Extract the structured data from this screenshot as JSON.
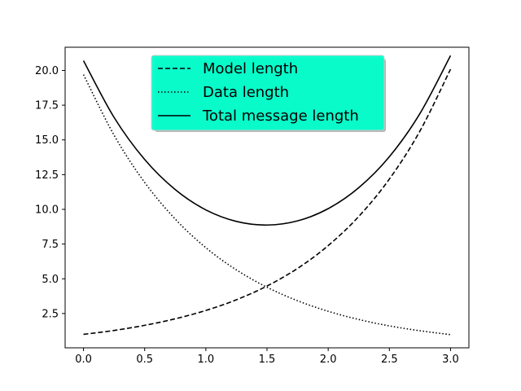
{
  "chart_data": {
    "type": "line",
    "title": "",
    "xlabel": "",
    "ylabel": "",
    "xlim": [
      -0.15,
      3.15
    ],
    "ylim": [
      0.03,
      21.67
    ],
    "x_ticks": [
      0.0,
      0.5,
      1.0,
      1.5,
      2.0,
      2.5,
      3.0
    ],
    "x_tick_labels": [
      "0.0",
      "0.5",
      "1.0",
      "1.5",
      "2.0",
      "2.5",
      "3.0"
    ],
    "y_ticks": [
      2.5,
      5.0,
      7.5,
      10.0,
      12.5,
      15.0,
      17.5,
      20.0
    ],
    "y_tick_labels": [
      "2.5",
      "5.0",
      "7.5",
      "10.0",
      "12.5",
      "15.0",
      "17.5",
      "20.0"
    ],
    "grid": false,
    "x": [
      0.0,
      0.25,
      0.5,
      0.75,
      1.0,
      1.25,
      1.5,
      1.75,
      2.0,
      2.25,
      2.5,
      2.75,
      3.0
    ],
    "series": [
      {
        "name": "Model length",
        "style": "dashed",
        "color": "#000000",
        "values": [
          1.0,
          1.28,
          1.65,
          2.12,
          2.72,
          3.49,
          4.48,
          5.75,
          7.39,
          9.49,
          12.18,
          15.64,
          20.09
        ]
      },
      {
        "name": "Data length",
        "style": "dotted",
        "color": "#000000",
        "values": [
          19.7,
          15.34,
          11.94,
          9.3,
          7.24,
          5.64,
          4.39,
          3.42,
          2.66,
          2.07,
          1.61,
          1.26,
          0.98
        ]
      },
      {
        "name": "Total message length",
        "style": "solid",
        "color": "#000000",
        "values": [
          20.7,
          16.62,
          13.59,
          11.42,
          9.96,
          9.13,
          8.87,
          9.17,
          10.05,
          11.56,
          13.79,
          16.9,
          21.07
        ]
      }
    ],
    "legend": {
      "placement": "upper center",
      "background": "#00ffcc",
      "entries": [
        "Model length",
        "Data length",
        "Total message length"
      ]
    }
  }
}
